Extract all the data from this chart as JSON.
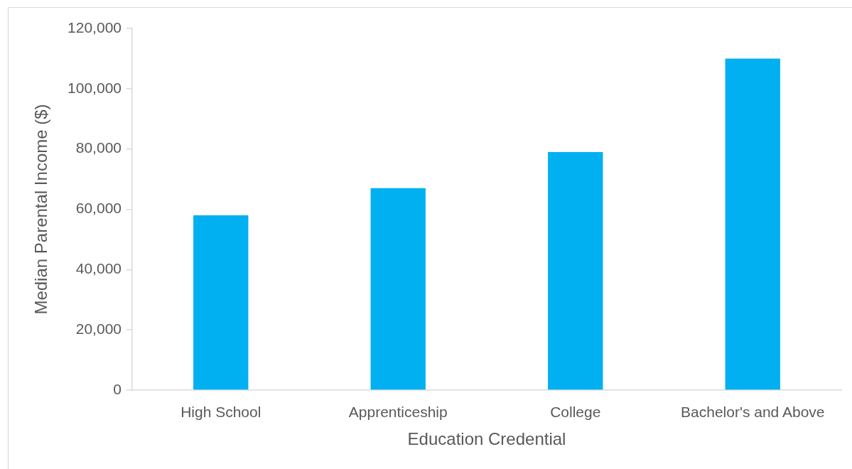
{
  "chart_data": {
    "type": "bar",
    "xlabel": "Education Credential",
    "ylabel": "Median Parental Income ($)",
    "categories": [
      "High School",
      "Apprenticeship",
      "College",
      "Bachelor's and Above"
    ],
    "values": [
      58000,
      67000,
      79000,
      110000
    ],
    "color": "#00b0f0",
    "ylim": [
      0,
      120000
    ],
    "yticks": [
      {
        "value": 0,
        "label": "0"
      },
      {
        "value": 20000,
        "label": "20,000"
      },
      {
        "value": 40000,
        "label": "40,000"
      },
      {
        "value": 60000,
        "label": "60,000"
      },
      {
        "value": 80000,
        "label": "80,000"
      },
      {
        "value": 100000,
        "label": "100,000"
      },
      {
        "value": 120000,
        "label": "120,000"
      }
    ]
  }
}
